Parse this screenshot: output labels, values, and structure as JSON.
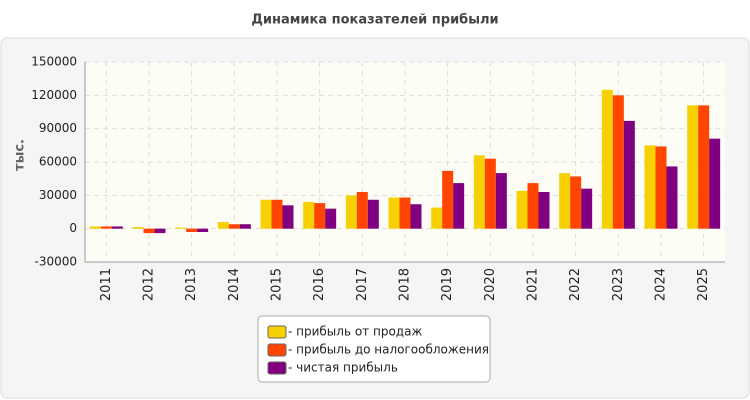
{
  "chart_data": {
    "type": "bar",
    "title": "Динамика показателей прибыли",
    "y_label": "тыс.",
    "categories": [
      "2011",
      "2012",
      "2013",
      "2014",
      "2015",
      "2016",
      "2017",
      "2018",
      "2019",
      "2020",
      "2021",
      "2022",
      "2023",
      "2024",
      "2025"
    ],
    "series": [
      {
        "name": "- прибыль от продаж",
        "color": "#f7d000",
        "values": [
          2000,
          1500,
          1000,
          6000,
          26000,
          24000,
          30000,
          28000,
          19000,
          66000,
          34000,
          50000,
          125000,
          75000,
          111000
        ]
      },
      {
        "name": "- прибыль до налогообложения",
        "color": "#ff4500",
        "values": [
          2000,
          -4000,
          -3000,
          4000,
          26000,
          23000,
          33000,
          28000,
          52000,
          63000,
          41000,
          47000,
          120000,
          74000,
          111000
        ]
      },
      {
        "name": "- чистая прибыль",
        "color": "#800080",
        "values": [
          2000,
          -4000,
          -3000,
          4000,
          21000,
          18000,
          26000,
          22000,
          41000,
          50000,
          33000,
          36000,
          97000,
          56000,
          81000
        ]
      }
    ],
    "ylim": [
      -30000,
      150000
    ],
    "yticks": [
      -30000,
      0,
      30000,
      60000,
      90000,
      120000,
      150000
    ],
    "grid": true
  }
}
